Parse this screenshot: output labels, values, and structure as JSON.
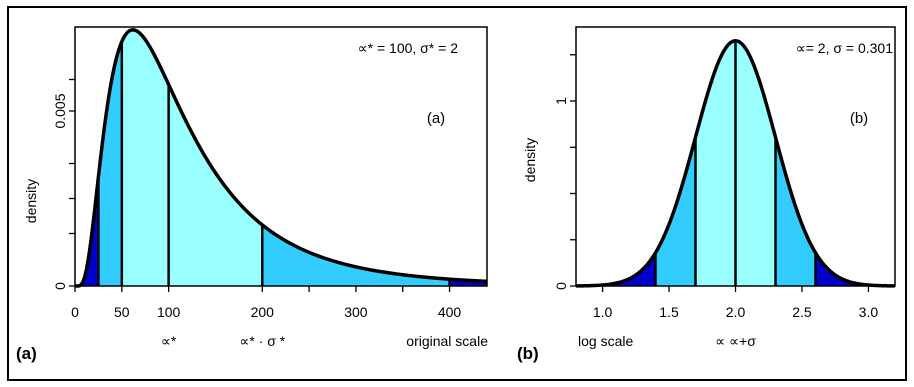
{
  "colors": {
    "outer": "#0000cc",
    "middle": "#33ccff",
    "inner": "#99ffff",
    "curve": "#000000",
    "frame": "#000000"
  },
  "panel_labels": [
    "(a)",
    "(b)"
  ],
  "chart_data": [
    {
      "type": "area",
      "distribution": "lognormal",
      "x_scale": "linear",
      "params": {
        "median": 100,
        "mult_sd": 2
      },
      "params_label": "∝* = 100, σ* = 2",
      "inset_label": "(a)",
      "ylabel": "density",
      "xlim": [
        0,
        440
      ],
      "ylim": [
        0,
        0.0074
      ],
      "x_ticks": [
        0,
        50,
        100,
        200,
        300,
        400
      ],
      "x_tick_labels": [
        "0",
        "50",
        "100",
        "200",
        "300",
        "400"
      ],
      "x_minor_ticks": [
        250,
        350
      ],
      "y_ticks": [
        0,
        0.0015,
        0.0025,
        0.0035,
        0.005,
        0.0059
      ],
      "y_tick_labels": [
        "0",
        "",
        "",
        "",
        "0.005",
        ""
      ],
      "shading_boundaries": [
        25,
        50,
        100,
        200,
        400
      ],
      "bands": [
        {
          "from": 0,
          "to": 25,
          "color": "outer"
        },
        {
          "from": 25,
          "to": 50,
          "color": "middle"
        },
        {
          "from": 50,
          "to": 200,
          "color": "inner"
        },
        {
          "from": 200,
          "to": 400,
          "color": "middle"
        },
        {
          "from": 400,
          "to": 440,
          "color": "outer"
        }
      ],
      "x_annotations": [
        {
          "x": 100,
          "text": "∝*"
        },
        {
          "x": 200,
          "text": "∝* · σ *"
        }
      ],
      "scale_label": "original scale",
      "grid": false
    },
    {
      "type": "area",
      "distribution": "normal",
      "x_scale": "log10",
      "params": {
        "mean": 2,
        "sd": 0.301
      },
      "params_label": "∝= 2, σ = 0.301",
      "inset_label": "(b)",
      "ylabel": "density",
      "xlim": [
        0.8,
        3.2
      ],
      "ylim": [
        0,
        1.4
      ],
      "x_ticks": [
        1.0,
        1.5,
        2.0,
        2.5,
        3.0
      ],
      "x_tick_labels": [
        "1.0",
        "1.5",
        "2.0",
        "2.5",
        "3.0"
      ],
      "y_ticks": [
        0,
        0.25,
        0.5,
        0.75,
        1.0,
        1.25
      ],
      "y_tick_labels": [
        "0",
        "",
        "",
        "",
        "1",
        ""
      ],
      "shading_boundaries": [
        1.398,
        1.699,
        2.0,
        2.301,
        2.602
      ],
      "bands": [
        {
          "from": 0.8,
          "to": 1.398,
          "color": "outer"
        },
        {
          "from": 1.398,
          "to": 1.699,
          "color": "middle"
        },
        {
          "from": 1.699,
          "to": 2.301,
          "color": "inner"
        },
        {
          "from": 2.301,
          "to": 2.602,
          "color": "middle"
        },
        {
          "from": 2.602,
          "to": 3.2,
          "color": "outer"
        }
      ],
      "x_annotations": [
        {
          "x": 2.0,
          "text": "∝ ∝+σ"
        }
      ],
      "scale_label": "log scale",
      "grid": false
    }
  ]
}
